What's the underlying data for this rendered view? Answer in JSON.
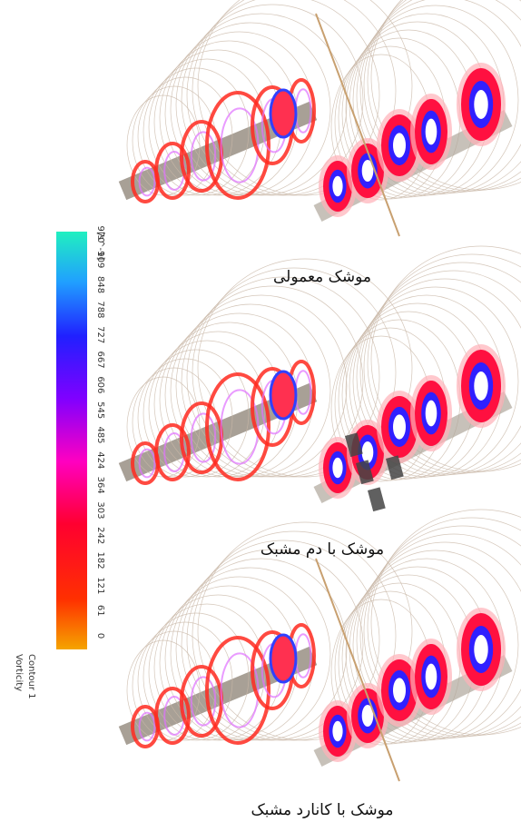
{
  "legend": {
    "title": "Vorticity",
    "subtitle": "Contour 1",
    "unit": "[s^-1]",
    "ticks": [
      0,
      61,
      121,
      182,
      242,
      303,
      364,
      424,
      485,
      545,
      606,
      667,
      727,
      788,
      848,
      909,
      970
    ]
  },
  "captions": [
    "موشک معمولی",
    "موشک با دم مشبک",
    "موشک با کانارد مشبک"
  ]
}
